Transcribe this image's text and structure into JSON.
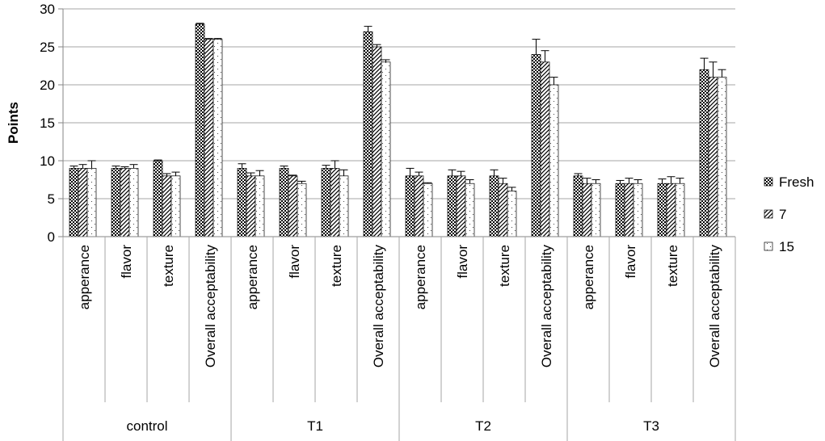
{
  "chart_data": {
    "type": "bar",
    "title": "",
    "xlabel": "",
    "ylabel": "Points",
    "ylim": [
      0,
      30
    ],
    "yticks": [
      0,
      5,
      10,
      15,
      20,
      25,
      30
    ],
    "grid": true,
    "legend_position": "right",
    "groups": [
      {
        "label": "control",
        "categories": [
          "apperance",
          "flavor",
          "texture",
          "Overall acceptability"
        ]
      },
      {
        "label": "T1",
        "categories": [
          "apperance",
          "flavor",
          "texture",
          "Overall acceptability"
        ]
      },
      {
        "label": "T2",
        "categories": [
          "apperance",
          "flavor",
          "texture",
          "Overall acceptability"
        ]
      },
      {
        "label": "T3",
        "categories": [
          "apperance",
          "flavor",
          "texture",
          "Overall acceptability"
        ]
      }
    ],
    "series": [
      {
        "name": "Fresh",
        "pattern": "checker",
        "values": [
          9,
          9,
          10,
          28,
          9,
          9,
          9,
          27,
          8,
          8,
          8,
          24,
          8,
          7,
          7,
          22
        ],
        "errors": [
          0.3,
          0.3,
          0.1,
          0.1,
          0.6,
          0.3,
          0.4,
          0.7,
          1.0,
          0.8,
          0.8,
          2.0,
          0.3,
          0.4,
          0.6,
          1.5
        ]
      },
      {
        "name": "7",
        "pattern": "diagonal",
        "values": [
          9,
          9,
          8,
          26,
          8,
          8,
          9,
          25,
          8,
          8,
          7,
          23,
          7,
          7,
          7,
          21
        ],
        "errors": [
          0.5,
          0.2,
          0.3,
          0.1,
          0.4,
          0.1,
          1.0,
          0.3,
          0.5,
          0.6,
          0.7,
          1.5,
          0.7,
          0.7,
          0.9,
          2.0
        ]
      },
      {
        "name": "15",
        "pattern": "dotted",
        "values": [
          9,
          9,
          8,
          26,
          8,
          7,
          8,
          23,
          7,
          7,
          6,
          20,
          7,
          7,
          7,
          21
        ],
        "errors": [
          1.0,
          0.5,
          0.5,
          0.1,
          0.7,
          0.3,
          0.8,
          0.3,
          0.1,
          0.5,
          0.5,
          1.0,
          0.5,
          0.5,
          0.7,
          1.0
        ]
      }
    ]
  }
}
